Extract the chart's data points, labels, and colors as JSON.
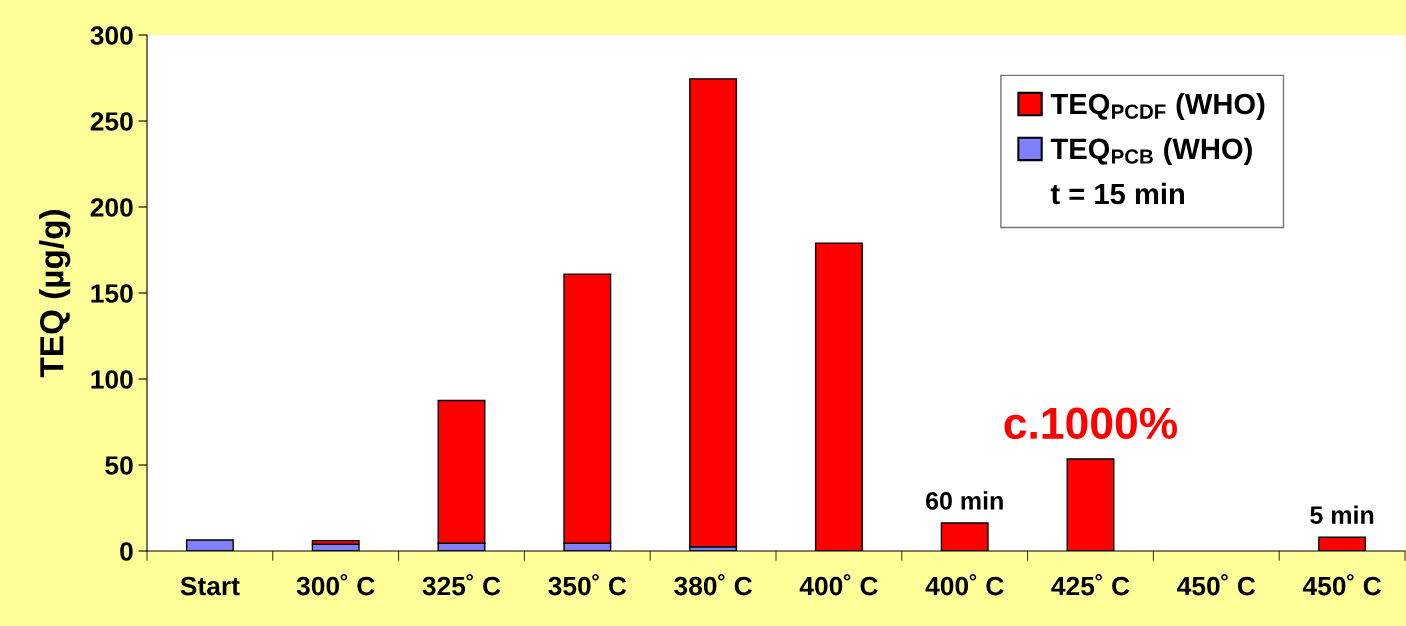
{
  "chart_data": {
    "type": "bar",
    "stacked": true,
    "ylabel": "TEQ (µg/g)",
    "categories": [
      "Start",
      "300˚ C",
      "325˚ C",
      "350˚ C",
      "380˚ C",
      "400˚ C",
      "400˚ C",
      "425˚ C",
      "450˚ C",
      "450˚ C"
    ],
    "series": [
      {
        "name": "TEQ$_{PCB}$ (WHO)",
        "color": "#8080ff",
        "values": [
          6.4,
          4,
          4.5,
          4.5,
          2.5,
          null,
          null,
          null,
          null,
          null
        ]
      },
      {
        "name": "TEQ$_{PCDF}$ (WHO)",
        "color": "#ff0000",
        "values": [
          null,
          2,
          83,
          156.5,
          272,
          179,
          16.3,
          53.5,
          null,
          8
        ]
      }
    ],
    "ylim": [
      0,
      300
    ],
    "yticks": [
      0,
      50,
      100,
      150,
      200,
      250,
      300
    ],
    "legend": "top right",
    "grid": false,
    "annotations": [
      "t = 15 min",
      "60 min",
      "c.1000%",
      "5 min"
    ]
  }
}
